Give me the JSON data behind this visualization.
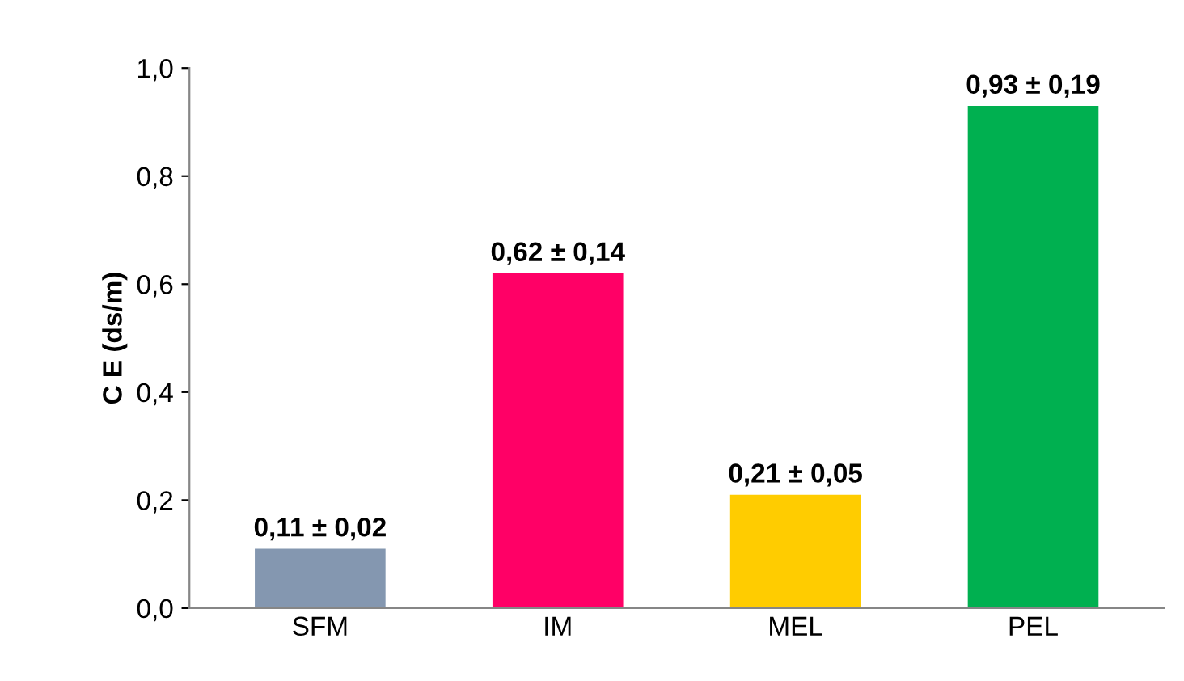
{
  "chart_data": {
    "type": "bar",
    "ylabel": "C E (ds/m)",
    "categories": [
      "SFM",
      "IM",
      "MEL",
      "PEL"
    ],
    "values": [
      0.11,
      0.62,
      0.21,
      0.93
    ],
    "colors": [
      "#8497b0",
      "#ff0066",
      "#ffcc00",
      "#00b050"
    ],
    "value_labels": [
      "0,11 ± 0,02",
      "0,62 ± 0,14",
      "0,21 ± 0,05",
      "0,93 ± 0,19"
    ],
    "ylim": [
      0,
      1.0
    ],
    "yticks": [
      {
        "value": 0,
        "label": "0,0"
      },
      {
        "value": 0.2,
        "label": "0,2"
      },
      {
        "value": 0.4,
        "label": "0,4"
      },
      {
        "value": 0.6,
        "label": "0,6"
      },
      {
        "value": 0.8,
        "label": "0,8"
      },
      {
        "value": 1.0,
        "label": "1,0"
      }
    ],
    "grid": false
  }
}
